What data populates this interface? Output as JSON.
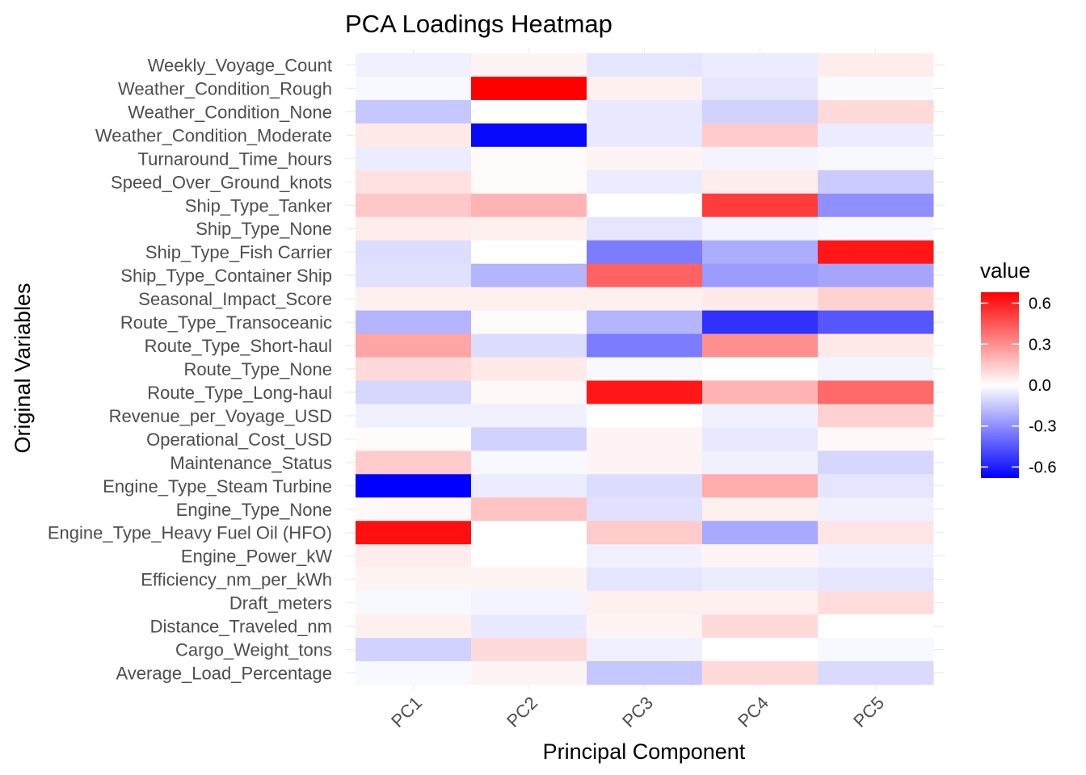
{
  "chart_data": {
    "type": "heatmap",
    "title": "PCA Loadings Heatmap",
    "xlabel": "Principal Component",
    "ylabel": "Original Variables",
    "x": [
      "PC1",
      "PC2",
      "PC3",
      "PC4",
      "PC5"
    ],
    "y": [
      "Weekly_Voyage_Count",
      "Weather_Condition_Rough",
      "Weather_Condition_None",
      "Weather_Condition_Moderate",
      "Turnaround_Time_hours",
      "Speed_Over_Ground_knots",
      "Ship_Type_Tanker",
      "Ship_Type_None",
      "Ship_Type_Fish Carrier",
      "Ship_Type_Container Ship",
      "Seasonal_Impact_Score",
      "Route_Type_Transoceanic",
      "Route_Type_Short-haul",
      "Route_Type_None",
      "Route_Type_Long-haul",
      "Revenue_per_Voyage_USD",
      "Operational_Cost_USD",
      "Maintenance_Status",
      "Engine_Type_Steam Turbine",
      "Engine_Type_None",
      "Engine_Type_Heavy Fuel Oil (HFO)",
      "Engine_Power_kW",
      "Efficiency_nm_per_kWh",
      "Draft_meters",
      "Distance_Traveled_nm",
      "Cargo_Weight_tons",
      "Average_Load_Percentage"
    ],
    "values": [
      [
        -0.04,
        0.03,
        -0.07,
        -0.05,
        0.05
      ],
      [
        -0.02,
        0.68,
        0.04,
        -0.07,
        -0.01
      ],
      [
        -0.15,
        0.0,
        -0.06,
        -0.12,
        0.1
      ],
      [
        0.06,
        -0.66,
        -0.06,
        0.14,
        -0.05
      ],
      [
        -0.05,
        0.01,
        0.03,
        -0.03,
        -0.02
      ],
      [
        0.08,
        0.01,
        -0.05,
        0.05,
        -0.14
      ],
      [
        0.15,
        0.2,
        0.0,
        0.52,
        -0.3
      ],
      [
        0.05,
        0.04,
        -0.07,
        -0.03,
        -0.02
      ],
      [
        -0.09,
        0.0,
        -0.35,
        -0.22,
        0.62
      ],
      [
        -0.08,
        -0.2,
        0.42,
        -0.27,
        -0.24
      ],
      [
        0.04,
        0.04,
        0.04,
        0.06,
        0.12
      ],
      [
        -0.2,
        0.01,
        -0.2,
        -0.55,
        -0.45
      ],
      [
        0.24,
        -0.09,
        -0.35,
        0.3,
        0.06
      ],
      [
        0.1,
        0.06,
        -0.02,
        0.0,
        -0.03
      ],
      [
        -0.11,
        0.02,
        0.62,
        0.2,
        0.4
      ],
      [
        -0.04,
        -0.04,
        0.0,
        -0.04,
        0.12
      ],
      [
        0.01,
        -0.12,
        0.03,
        -0.06,
        0.02
      ],
      [
        0.14,
        -0.02,
        0.03,
        -0.04,
        -0.11
      ],
      [
        -0.68,
        -0.05,
        -0.09,
        0.22,
        -0.07
      ],
      [
        0.02,
        0.16,
        -0.08,
        0.04,
        -0.04
      ],
      [
        0.64,
        0.0,
        0.14,
        -0.23,
        0.07
      ],
      [
        0.05,
        0.0,
        -0.04,
        0.03,
        -0.04
      ],
      [
        0.03,
        0.03,
        -0.07,
        -0.05,
        -0.07
      ],
      [
        -0.02,
        -0.03,
        0.04,
        0.04,
        0.09
      ],
      [
        0.04,
        -0.06,
        0.03,
        0.1,
        0.0
      ],
      [
        -0.12,
        0.1,
        -0.04,
        0.0,
        -0.02
      ],
      [
        -0.02,
        0.03,
        -0.15,
        0.1,
        -0.1
      ]
    ],
    "color_scale": {
      "low": "#0000ff",
      "mid": "#ffffff",
      "high": "#ff0000",
      "limits": [
        -0.68,
        0.68
      ]
    },
    "legend": {
      "title": "value",
      "placement": "right",
      "ticks": [
        0.6,
        0.3,
        0.0,
        -0.3,
        -0.6
      ],
      "tick_labels": [
        "0.6",
        "0.3",
        "0.0",
        "-0.3",
        "-0.6"
      ]
    },
    "grid": true
  }
}
